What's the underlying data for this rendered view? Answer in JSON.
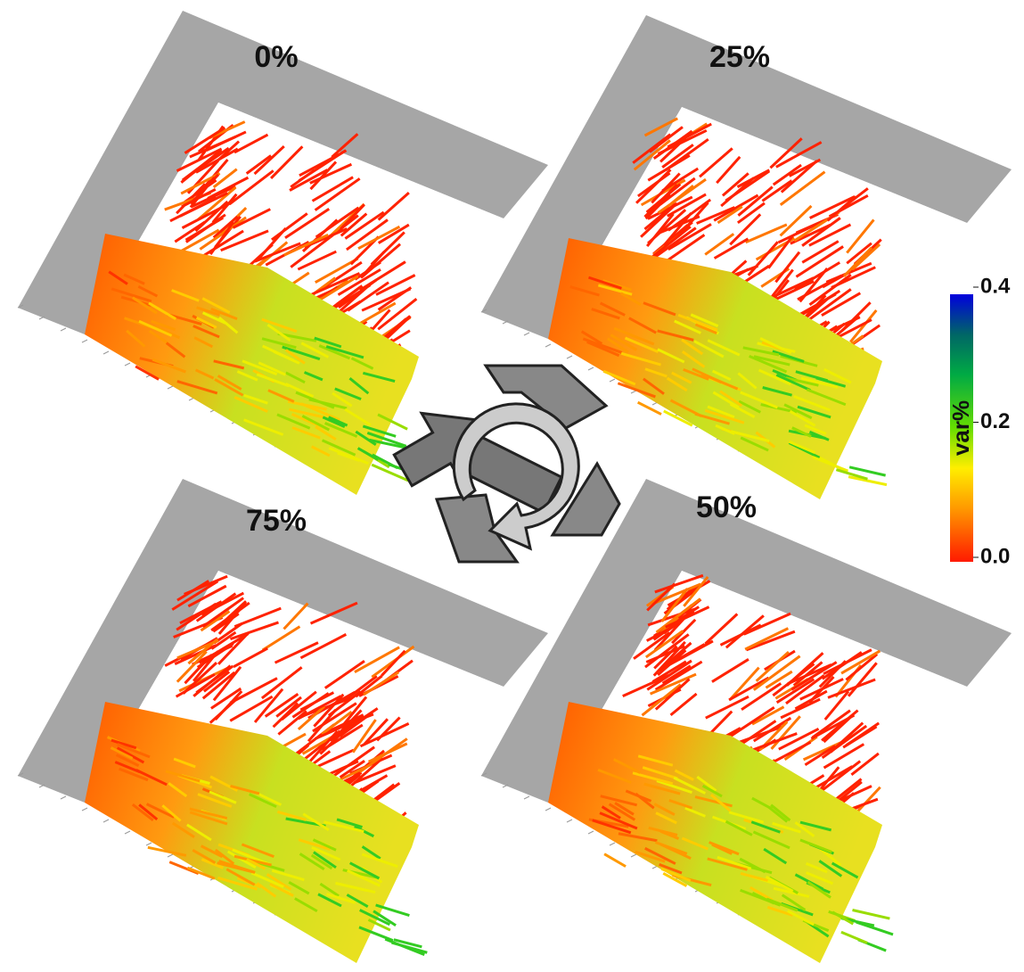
{
  "panels": [
    {
      "label": "0%"
    },
    {
      "label": "25%"
    },
    {
      "label": "75%"
    },
    {
      "label": "50%"
    }
  ],
  "colorbar": {
    "label": "var%",
    "lim": [
      0,
      0.4
    ],
    "ticks": [
      {
        "value": 0,
        "label": "0.0"
      },
      {
        "value": 0.2,
        "label": "0.2"
      },
      {
        "value": 0.4,
        "label": "0.4"
      }
    ]
  }
}
